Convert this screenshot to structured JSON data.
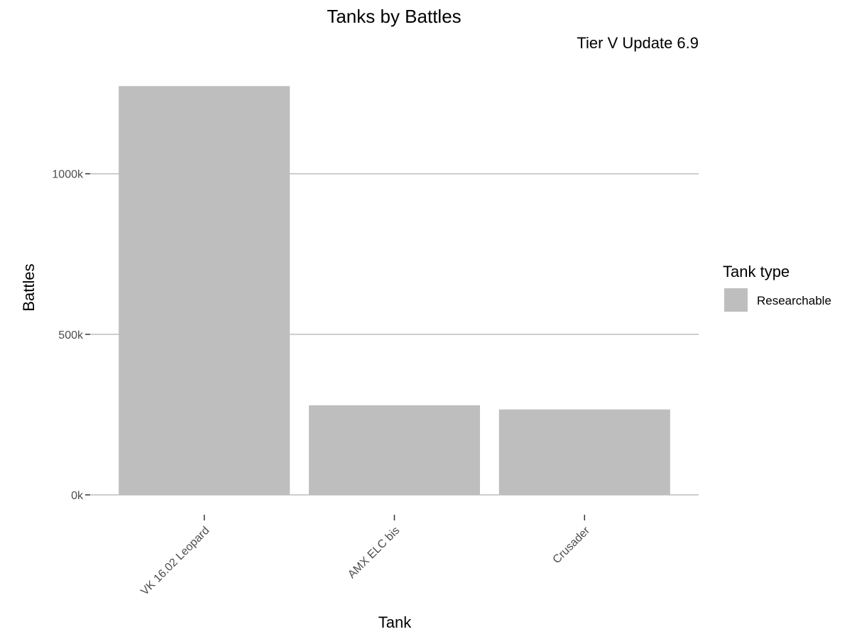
{
  "chart_data": {
    "type": "bar",
    "title": "Tanks by Battles",
    "subtitle": "Tier V Update 6.9",
    "xlabel": "Tank",
    "ylabel": "Battles",
    "categories": [
      "VK 16.02 Leopard",
      "AMX ELC bis",
      "Crusader"
    ],
    "series": [
      {
        "name": "Researchable",
        "values": [
          1273000,
          279000,
          266000
        ],
        "color": "#bebebe"
      }
    ],
    "ylim": [
      0,
      1320000
    ],
    "y_ticks": [
      0,
      500000,
      1000000
    ],
    "y_tick_labels": [
      "0k",
      "500k",
      "1000k"
    ],
    "grid": "horizontal major",
    "legend": {
      "title": "Tank type",
      "placement": "right",
      "entries": [
        "Researchable"
      ]
    },
    "x_tick_label_rotation": "45 degrees"
  }
}
